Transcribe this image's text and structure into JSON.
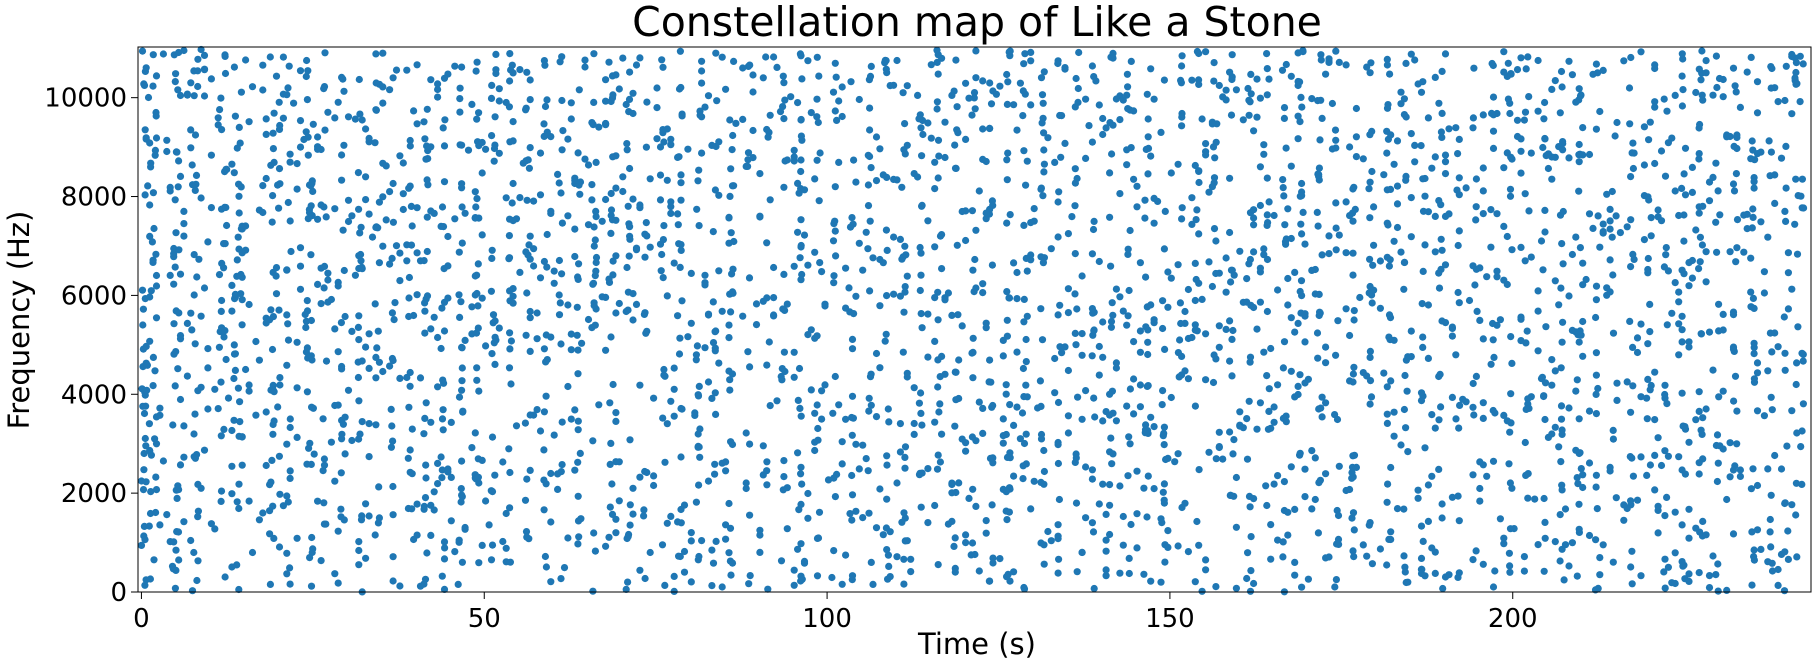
{
  "chart_data": {
    "type": "scatter",
    "title": "Constellation map of Like a Stone",
    "xlabel": "Time (s)",
    "ylabel": "Frequency (Hz)",
    "xlim": [
      -0.5,
      243.5
    ],
    "ylim": [
      0,
      11025
    ],
    "x_ticks": [
      0,
      50,
      100,
      150,
      200
    ],
    "y_ticks": [
      0,
      2000,
      4000,
      6000,
      8000,
      10000
    ],
    "grid": false,
    "legend": "none",
    "point_color": "#1f77b4",
    "series": [
      {
        "points_generation": "dense constellation of spectral peaks — thousands of points spread uniformly over 0–243 s and 0–11025 Hz, clustered in vertical columns at onset times",
        "x": [
          0.3,
          0.6,
          1.2,
          1.9,
          4.8,
          5.2,
          7.4,
          8.1,
          11.6,
          12.2,
          13.7,
          14.4,
          19.1,
          19.9,
          21.6,
          24.1,
          24.8,
          26.7,
          29.3,
          31.9,
          34.3,
          36.7,
          39.2,
          41.5,
          44.1,
          46.6,
          48.9,
          51.3,
          53.8,
          56.3,
          58.9,
          61.2,
          63.8,
          66.1,
          68.5,
          71.0,
          73.5,
          76.1,
          78.6,
          81.2,
          83.6,
          86.1,
          88.7,
          91.3,
          93.6,
          96.1,
          98.7,
          101.1,
          103.6,
          106.2,
          108.7,
          111.2,
          113.7,
          116.3,
          118.8,
          121.3,
          123.9,
          126.4,
          128.8,
          131.4,
          133.9,
          136.4,
          138.9,
          141.5,
          144.1,
          146.6,
          149.1,
          151.5,
          154.0,
          156.6,
          159.1,
          161.6,
          164.2,
          166.7,
          169.2,
          171.8,
          174.3,
          176.8,
          179.3,
          181.9,
          184.4,
          186.9,
          189.5,
          192.0,
          194.5,
          197.1,
          199.6,
          202.1,
          204.6,
          207.2,
          209.7,
          212.2,
          214.8,
          217.3,
          219.8,
          222.3,
          224.9,
          227.4,
          229.9,
          232.5,
          235.0,
          237.6,
          239.9,
          241.4,
          242.2
        ],
        "note": "column anchor times; individual peak frequencies filled per column"
      }
    ]
  }
}
